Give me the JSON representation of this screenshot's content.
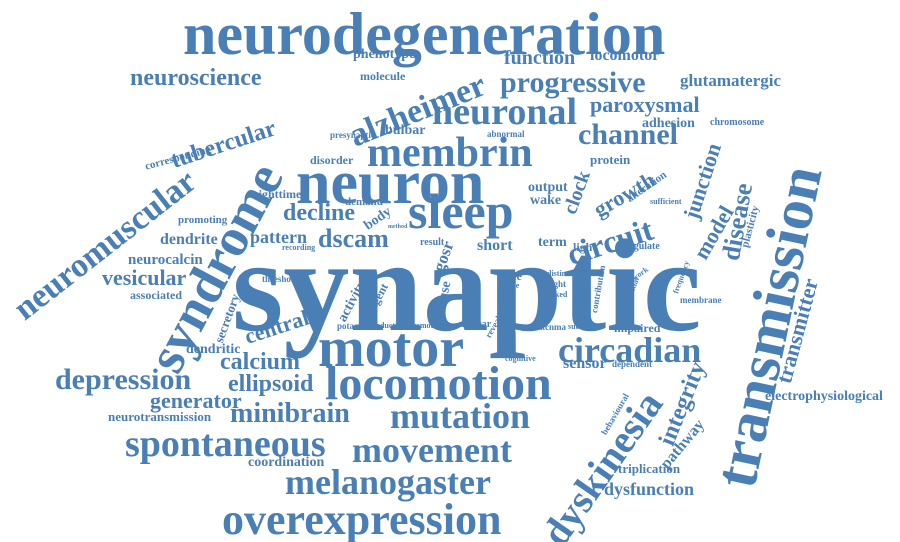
{
  "color": "#4a7fb5",
  "words": {
    "w001": "neurodegeneration",
    "w002": "neuroscience",
    "w003": "phenotype",
    "w004": "function",
    "w005": "locomotor",
    "w006": "alzheimer",
    "w007": "molecule",
    "w008": "progressive",
    "w009": "glutamatergic",
    "w010": "tubercular",
    "w011": "neuronal",
    "w012": "paroxysmal",
    "w013": "presynaptic",
    "w014": "bulbar",
    "w015": "abnormal",
    "w016": "adhesion",
    "w017": "chromosome",
    "w018": "corresponding",
    "w019": "membrin",
    "w020": "channel",
    "w021": "protein",
    "w022": "disorder",
    "w023": "neuron",
    "w024": "clock",
    "w025": "junction",
    "w026": "growth",
    "w027": "sleep",
    "w028": "circuit",
    "w029": "model",
    "w030": "disease",
    "w031": "nighttime",
    "w032": "output",
    "w033": "wake",
    "w034": "alteration",
    "w035": "sufficient",
    "w036": "plasticity",
    "w037": "neuromuscular",
    "w038": "syndrome",
    "w039": "decline",
    "w040": "demand",
    "w041": "body",
    "w042": "dendrite",
    "w043": "pattern",
    "w044": "dscam",
    "w045": "gosr",
    "w046": "short",
    "w047": "term",
    "w048": "light",
    "w049": "regulate",
    "w050": "promoting",
    "w051": "recording",
    "w052": "method",
    "w053": "result",
    "w054": "neurocalcin",
    "w055": "vesicular",
    "w056": "associated",
    "w057": "synaptic",
    "w058": "threshold",
    "w059": "secretory",
    "w060": "activity",
    "w061": "stringent",
    "w062": "cause",
    "w063": "role",
    "w064": "stage",
    "w065": "copy",
    "w066": "distinct",
    "w067": "night",
    "w068": "linked",
    "w069": "network",
    "w070": "frequency",
    "w071": "contribution",
    "w072": "potential",
    "w073": "membrane",
    "w074": "transmission",
    "w075": "transmitter",
    "w076": "central",
    "w077": "dendritic",
    "w078": "potassium",
    "w079": "reduction",
    "w080": "promote",
    "w081": "unclear",
    "w082": "reveal",
    "w083": "kcnma",
    "w084": "subset",
    "w085": "impaired",
    "w086": "motor",
    "w087": "circadian",
    "w088": "calcium",
    "w089": "sensor",
    "w090": "cognitive",
    "w091": "dependent",
    "w092": "depression",
    "w093": "ellipsoid",
    "w094": "locomotion",
    "w095": "dyskinesia",
    "w096": "integrity",
    "w097": "generator",
    "w098": "electrophysiological",
    "w099": "neurotransmission",
    "w100": "minibrain",
    "w101": "mutation",
    "w102": "behavioural",
    "w103": "pathway",
    "w104": "spontaneous",
    "w105": "movement",
    "w106": "coordination",
    "w107": "triplication",
    "w108": "melanogaster",
    "w109": "dysfunction",
    "w110": "overexpression"
  }
}
